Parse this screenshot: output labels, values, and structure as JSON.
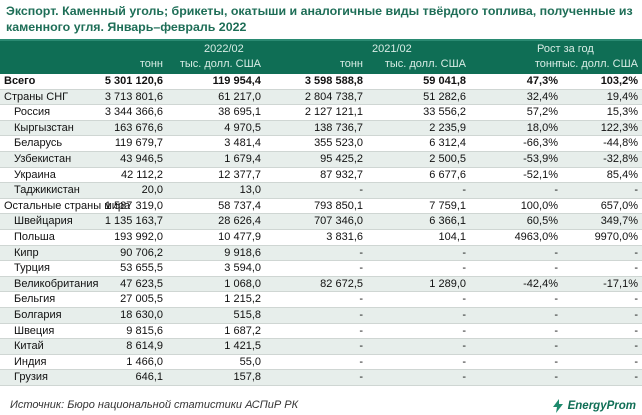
{
  "title": "Экспорт. Каменный уголь; брикеты, окатыши и аналогичные виды твёрдого топлива, полученные из каменного угля. Январь–февраль 2022",
  "header": {
    "period1": "2022/02",
    "period2": "2021/02",
    "growth": "Рост за год",
    "col_tons": "тонн",
    "col_usd": "тыс. долл. США"
  },
  "rows": [
    {
      "name": "Всего",
      "v": [
        "5 301 120,6",
        "119 954,4",
        "3 598 588,8",
        "59 041,8",
        "47,3%",
        "103,2%"
      ]
    },
    {
      "name": "Страны СНГ",
      "v": [
        "3 713 801,6",
        "61 217,0",
        "2 804 738,7",
        "51 282,6",
        "32,4%",
        "19,4%"
      ]
    },
    {
      "name": "Россия",
      "v": [
        "3 344 366,6",
        "38 695,1",
        "2 127 121,1",
        "33 556,2",
        "57,2%",
        "15,3%"
      ]
    },
    {
      "name": "Кыргызстан",
      "v": [
        "163 676,6",
        "4 970,5",
        "138 736,7",
        "2 235,9",
        "18,0%",
        "122,3%"
      ]
    },
    {
      "name": "Беларусь",
      "v": [
        "119 679,7",
        "3 481,4",
        "355 523,0",
        "6 312,4",
        "-66,3%",
        "-44,8%"
      ]
    },
    {
      "name": "Узбекистан",
      "v": [
        "43 946,5",
        "1 679,4",
        "95 425,2",
        "2 500,5",
        "-53,9%",
        "-32,8%"
      ]
    },
    {
      "name": "Украина",
      "v": [
        "42 112,2",
        "12 377,7",
        "87 932,7",
        "6 677,6",
        "-52,1%",
        "85,4%"
      ]
    },
    {
      "name": "Таджикистан",
      "v": [
        "20,0",
        "13,0",
        "-",
        "-",
        "-",
        "-"
      ]
    },
    {
      "name": "Остальные страны мира",
      "v": [
        "1 587 319,0",
        "58 737,4",
        "793 850,1",
        "7 759,1",
        "100,0%",
        "657,0%"
      ]
    },
    {
      "name": "Швейцария",
      "v": [
        "1 135 163,7",
        "28 626,4",
        "707 346,0",
        "6 366,1",
        "60,5%",
        "349,7%"
      ]
    },
    {
      "name": "Польша",
      "v": [
        "193 992,0",
        "10 477,9",
        "3 831,6",
        "104,1",
        "4963,0%",
        "9970,0%"
      ]
    },
    {
      "name": "Кипр",
      "v": [
        "90 706,2",
        "9 918,6",
        "-",
        "-",
        "-",
        "-"
      ]
    },
    {
      "name": "Турция",
      "v": [
        "53 655,5",
        "3 594,0",
        "-",
        "-",
        "-",
        "-"
      ]
    },
    {
      "name": "Великобритания",
      "v": [
        "47 623,5",
        "1 068,0",
        "82 672,5",
        "1 289,0",
        "-42,4%",
        "-17,1%"
      ]
    },
    {
      "name": "Бельгия",
      "v": [
        "27 005,5",
        "1 215,2",
        "-",
        "-",
        "-",
        "-"
      ]
    },
    {
      "name": "Болгария",
      "v": [
        "18 630,0",
        "515,8",
        "-",
        "-",
        "-",
        "-"
      ]
    },
    {
      "name": "Швеция",
      "v": [
        "9 815,6",
        "1 687,2",
        "-",
        "-",
        "-",
        "-"
      ]
    },
    {
      "name": "Китай",
      "v": [
        "8 614,9",
        "1 421,5",
        "-",
        "-",
        "-",
        "-"
      ]
    },
    {
      "name": "Индия",
      "v": [
        "1 466,0",
        "55,0",
        "-",
        "-",
        "-",
        "-"
      ]
    },
    {
      "name": "Грузия",
      "v": [
        "646,1",
        "157,8",
        "-",
        "-",
        "-",
        "-"
      ]
    }
  ],
  "footer": {
    "source": "Источник: Бюро национальной статистики АСПиР РК",
    "logo_text": "EnergyProm",
    "logo_icon": "lightning-bolt-icon"
  },
  "colors": {
    "title": "#1e6e57",
    "header_bg": "#0f6e55",
    "header_text": "#d8ece5",
    "row_alt": "#e7eeeb"
  }
}
